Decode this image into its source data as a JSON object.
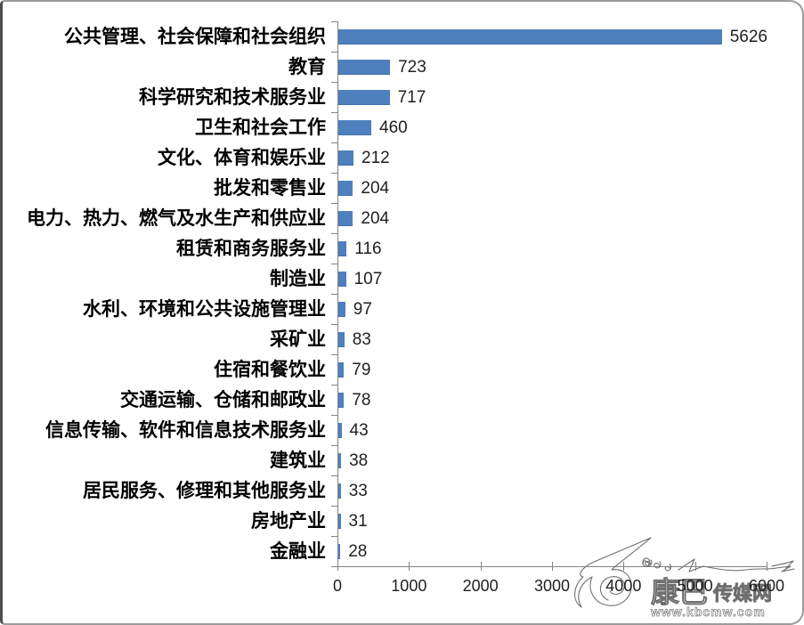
{
  "chart_data": {
    "type": "bar",
    "orientation": "horizontal",
    "title": "",
    "xlabel": "",
    "ylabel": "",
    "xlim": [
      0,
      6000
    ],
    "x_ticks": [
      0,
      1000,
      2000,
      3000,
      4000,
      5000,
      6000
    ],
    "grid": false,
    "legend": false,
    "bar_color": "#4e80bd",
    "value_labels_shown": true,
    "categories": [
      "公共管理、社会保障和社会组织",
      "教育",
      "科学研究和技术服务业",
      "卫生和社会工作",
      "文化、体育和娱乐业",
      "批发和零售业",
      "电力、热力、燃气及水生产和供应业",
      "租赁和商务服务业",
      "制造业",
      "水利、环境和公共设施管理业",
      "采矿业",
      "住宿和餐饮业",
      "交通运输、仓储和邮政业",
      "信息传输、软件和信息技术服务业",
      "建筑业",
      "居民服务、修理和其他服务业",
      "房地产业",
      "金融业"
    ],
    "values": [
      5626,
      723,
      717,
      460,
      212,
      204,
      204,
      116,
      107,
      97,
      83,
      79,
      78,
      43,
      38,
      33,
      31,
      28
    ]
  },
  "watermark": {
    "site_name_main": "康巴",
    "site_name_rest": "传媒网",
    "url": "www.kbcmw.com"
  },
  "frame": {
    "border_color": "#9b9b9b",
    "left_edge_color": "#4d4d4d",
    "background": "#ffffff"
  }
}
